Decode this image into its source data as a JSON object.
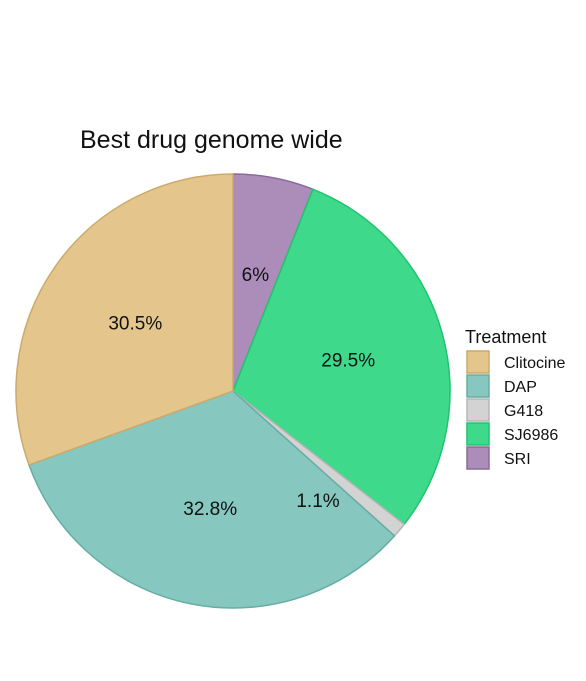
{
  "chart_data": {
    "type": "pie",
    "title": "Best drug genome wide",
    "legend": {
      "title": "Treatment",
      "position": "right"
    },
    "slices": [
      {
        "name": "SRI",
        "value": 6.0,
        "label": "6%",
        "color": "#ac8db9",
        "border": "#8a6a9b"
      },
      {
        "name": "SJ6986",
        "value": 29.5,
        "label": "29.5%",
        "color": "#3fd98b",
        "border": "#1fc46e"
      },
      {
        "name": "G418",
        "value": 1.1,
        "label": "1.1%",
        "color": "#d3d3d3",
        "border": "#b5b5b5"
      },
      {
        "name": "DAP",
        "value": 32.8,
        "label": "32.8%",
        "color": "#86c7bf",
        "border": "#66ada4"
      },
      {
        "name": "Clitocine",
        "value": 30.5,
        "label": "30.5%",
        "color": "#e4c68c",
        "border": "#ccaa6c"
      }
    ],
    "legend_order": [
      "Clitocine",
      "DAP",
      "G418",
      "SJ6986",
      "SRI"
    ]
  }
}
